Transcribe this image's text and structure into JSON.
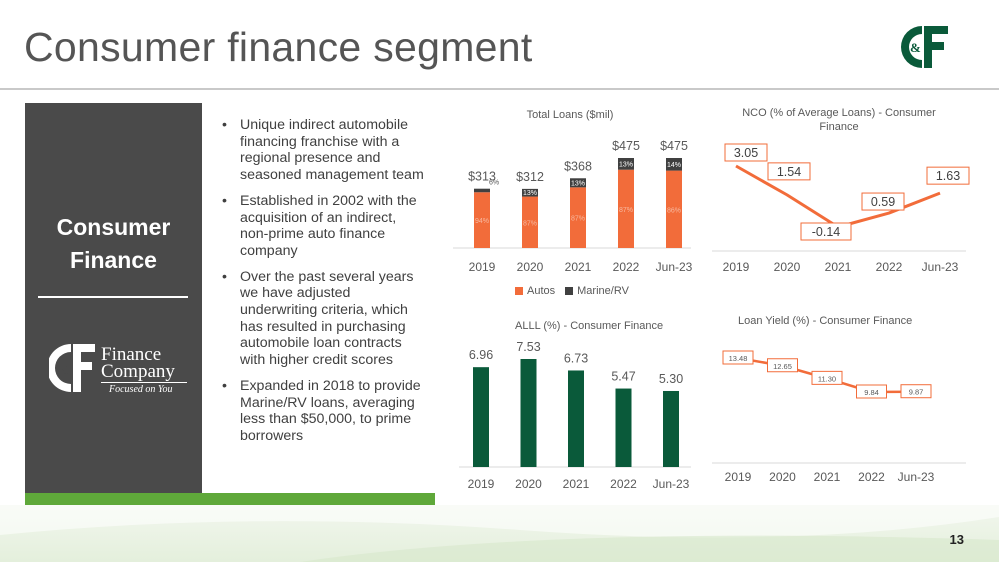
{
  "page": {
    "title": "Consumer finance segment",
    "page_number": "13"
  },
  "logos": {
    "top_logo_text": "C&F",
    "company_logo_mark": "&F",
    "company_name_line1": "Finance",
    "company_name_line2": "Company",
    "company_tagline": "Focused on You"
  },
  "panel": {
    "title_line1": "Consumer",
    "title_line2": "Finance"
  },
  "bullets": [
    "Unique indirect automobile financing franchise with a regional presence and seasoned management team",
    "Established in 2002 with the acquisition of an indirect, non-prime auto finance company",
    "Over the past several years we have adjusted underwriting criteria, which has resulted in purchasing automobile loan contracts with higher credit scores",
    "Expanded in 2018 to provide Marine/RV loans, averaging less than $50,000, to prime borrowers"
  ],
  "colors": {
    "orange": "#f26c3a",
    "dark_gray": "#404040",
    "green": "#0a5a3a",
    "panel": "#4a4a4a",
    "accent_green": "#5fa83a"
  },
  "chart_data": [
    {
      "type": "bar",
      "stacked": true,
      "title": "Total Loans ($mil)",
      "categories": [
        "2019",
        "2020",
        "2021",
        "2022",
        "Jun-23"
      ],
      "totals_labels": [
        "$313",
        "$312",
        "$368",
        "$475",
        "$475"
      ],
      "totals": [
        313,
        312,
        368,
        475,
        475
      ],
      "series": [
        {
          "name": "Autos",
          "percent_labels": [
            "94%",
            "87%",
            "87%",
            "87%",
            "86%"
          ],
          "share": [
            94,
            87,
            87,
            87,
            86
          ],
          "color": "#f26c3a"
        },
        {
          "name": "Marine/RV",
          "percent_labels": [
            "6%",
            "13%",
            "13%",
            "13%",
            "14%"
          ],
          "share": [
            6,
            13,
            13,
            13,
            14
          ],
          "color": "#404040"
        }
      ],
      "legend": "bottom"
    },
    {
      "type": "line",
      "title": "NCO (% of Average Loans) - Consumer Finance",
      "categories": [
        "2019",
        "2020",
        "2021",
        "2022",
        "Jun-23"
      ],
      "values": [
        3.05,
        1.54,
        -0.14,
        0.59,
        1.63
      ],
      "labels": [
        "3.05",
        "1.54",
        "-0.14",
        "0.59",
        "1.63"
      ],
      "color": "#f26c3a"
    },
    {
      "type": "bar",
      "title": "ALLL (%) - Consumer Finance",
      "categories": [
        "2019",
        "2020",
        "2021",
        "2022",
        "Jun-23"
      ],
      "values": [
        6.96,
        7.53,
        6.73,
        5.47,
        5.3
      ],
      "labels": [
        "6.96",
        "7.53",
        "6.73",
        "5.47",
        "5.30"
      ],
      "color": "#0a5a3a"
    },
    {
      "type": "line",
      "title": "Loan Yield (%) - Consumer Finance",
      "categories": [
        "2019",
        "2020",
        "2021",
        "2022",
        "Jun-23"
      ],
      "values": [
        13.48,
        12.65,
        11.3,
        9.84,
        9.87
      ],
      "labels": [
        "13.48",
        "12.65",
        "11.30",
        "9.84",
        "9.87"
      ],
      "color": "#f26c3a"
    }
  ]
}
